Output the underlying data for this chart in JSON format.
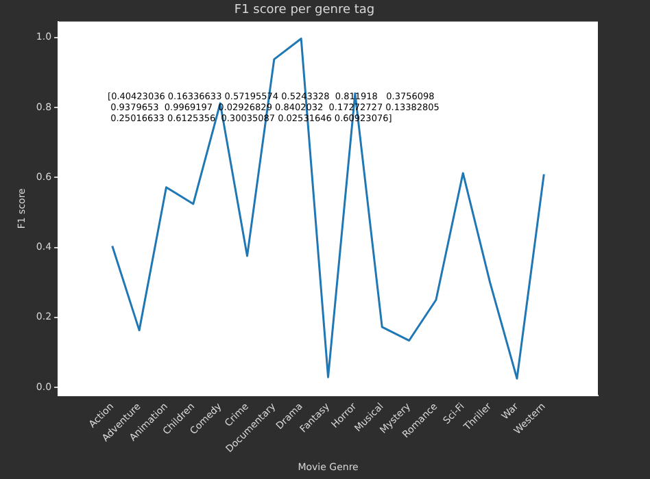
{
  "chart_data": {
    "type": "line",
    "title": "F1 score per genre tag",
    "xlabel": "Movie Genre",
    "ylabel": "F1 score",
    "categories": [
      "Action",
      "Adventure",
      "Animation",
      "Children",
      "Comedy",
      "Crime",
      "Documentary",
      "Drama",
      "Fantasy",
      "Horror",
      "Musical",
      "Mystery",
      "Romance",
      "Sci-Fi",
      "Thriller",
      "War",
      "Western"
    ],
    "series": [
      {
        "color": "#1f77b4",
        "values": [
          0.40423036,
          0.16336633,
          0.57195574,
          0.5243328,
          0.811918,
          0.3756098,
          0.9379653,
          0.9969197,
          0.02926829,
          0.8402032,
          0.17272727,
          0.13382805,
          0.25016633,
          0.6125356,
          0.30035087,
          0.02531646,
          0.60923076
        ]
      }
    ],
    "ylim": [
      -0.0233,
      1.0455
    ],
    "yticks": [
      {
        "value": 0,
        "label": "0.0"
      },
      {
        "value": 0.2,
        "label": "0.2"
      },
      {
        "value": 0.4,
        "label": "0.4"
      },
      {
        "value": 0.6,
        "label": "0.6"
      },
      {
        "value": 0.8,
        "label": "0.8"
      },
      {
        "value": 1,
        "label": "1.0"
      }
    ],
    "grid": false,
    "legend": false,
    "marker": "none",
    "line_style": "solid",
    "annotations": [
      "[0.40423036 0.16336633 0.57195574 0.5243328  0.811918   0.3756098\n 0.9379653  0.9969197  0.02926829 0.8402032  0.17272727 0.13382805\n 0.25016633 0.6125356  0.30035087 0.02531646 0.60923076]"
    ]
  }
}
